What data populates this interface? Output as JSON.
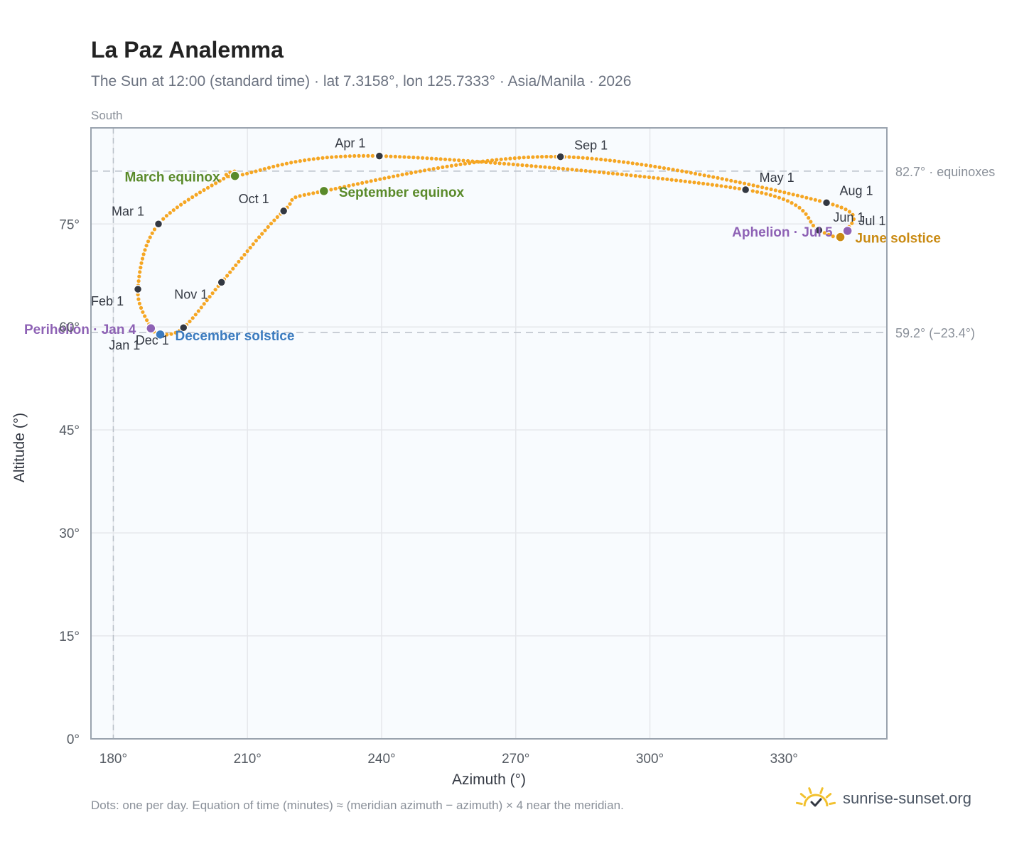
{
  "title": "La Paz Analemma",
  "subtitle": "The Sun at 12:00 (standard time) · lat 7.3158°, lon 125.7333° · Asia/Manila · 2026",
  "footer": "Dots: one per day. Equation of time (minutes) ≈ (meridian azimuth − azimuth) × 4 near the meridian.",
  "brand": "sunrise-sunset.org",
  "colors": {
    "path": "#f5a623",
    "month_marker": "#333842",
    "equinox": "#5a8a2a",
    "june_solstice": "#c98a12",
    "december_solstice": "#3b7bbf",
    "apsis": "#8e62b5",
    "grid": "#e5e7eb",
    "frame": "#9aa3ae",
    "plot_bg": "#f8fbfe",
    "reference_line": "#b9c0c9",
    "brand_sun": "#f2c12e"
  },
  "chart_data": {
    "type": "scatter",
    "xlabel": "Azimuth (°)",
    "ylabel": "Altitude (°)",
    "xlim": [
      175,
      353
    ],
    "ylim": [
      0,
      89
    ],
    "xticks": [
      180,
      210,
      240,
      270,
      300,
      330
    ],
    "xtick_labels": [
      "180°",
      "210°",
      "240°",
      "270°",
      "300°",
      "330°"
    ],
    "yticks": [
      0,
      15,
      30,
      45,
      60,
      75
    ],
    "ytick_labels": [
      "0°",
      "15°",
      "30°",
      "45°",
      "60°",
      "75°"
    ],
    "grid": true,
    "meridian": {
      "azimuth": 180,
      "label": "South"
    },
    "reference_lines": [
      {
        "altitude": 82.7,
        "label": "82.7° · equinoxes"
      },
      {
        "altitude": 59.2,
        "label": "59.2° (−23.4°)"
      }
    ],
    "path_anchors": [
      {
        "az": 188.4,
        "alt": 59.8
      },
      {
        "az": 185.5,
        "alt": 65.5
      },
      {
        "az": 190.1,
        "alt": 75.0
      },
      {
        "az": 206.5,
        "alt": 82.3
      },
      {
        "az": 207.2,
        "alt": 82.0
      },
      {
        "az": 239.5,
        "alt": 84.9
      },
      {
        "az": 321.4,
        "alt": 80.0
      },
      {
        "az": 337.8,
        "alt": 74.1
      },
      {
        "az": 342.6,
        "alt": 73.1
      },
      {
        "az": 344.0,
        "alt": 74.0
      },
      {
        "az": 344.2,
        "alt": 74.0
      },
      {
        "az": 339.5,
        "alt": 78.1
      },
      {
        "az": 280.0,
        "alt": 84.8
      },
      {
        "az": 227.1,
        "alt": 79.8
      },
      {
        "az": 218.1,
        "alt": 76.9
      },
      {
        "az": 204.2,
        "alt": 66.5
      },
      {
        "az": 195.7,
        "alt": 59.9
      },
      {
        "az": 190.5,
        "alt": 58.9
      },
      {
        "az": 188.4,
        "alt": 59.8
      }
    ],
    "month_markers": [
      {
        "label": "Jan 1",
        "az": 188.4,
        "alt": 59.8
      },
      {
        "label": "Feb 1",
        "az": 185.5,
        "alt": 65.5
      },
      {
        "label": "Mar 1",
        "az": 190.1,
        "alt": 75.0
      },
      {
        "label": "Apr 1",
        "az": 239.5,
        "alt": 84.9
      },
      {
        "label": "May 1",
        "az": 321.4,
        "alt": 80.0
      },
      {
        "label": "Jun 1",
        "az": 337.8,
        "alt": 74.1
      },
      {
        "label": "Jul 1",
        "az": 344.0,
        "alt": 74.0
      },
      {
        "label": "Aug 1",
        "az": 339.5,
        "alt": 78.1
      },
      {
        "label": "Sep 1",
        "az": 280.0,
        "alt": 84.8
      },
      {
        "label": "Oct 1",
        "az": 218.1,
        "alt": 76.9
      },
      {
        "label": "Nov 1",
        "az": 204.2,
        "alt": 66.5
      },
      {
        "label": "Dec 1",
        "az": 195.7,
        "alt": 59.9
      }
    ],
    "events": [
      {
        "label": "March equinox",
        "az": 207.2,
        "alt": 82.0,
        "kind": "equinox"
      },
      {
        "label": "September equinox",
        "az": 227.1,
        "alt": 79.8,
        "kind": "equinox"
      },
      {
        "label": "June solstice",
        "az": 342.6,
        "alt": 73.1,
        "kind": "june_solstice"
      },
      {
        "label": "December solstice",
        "az": 190.5,
        "alt": 58.9,
        "kind": "december_solstice"
      },
      {
        "label": "Perihelion · Jan 4",
        "az": 188.4,
        "alt": 59.8,
        "kind": "apsis"
      },
      {
        "label": "Aphelion · Jul 5",
        "az": 344.2,
        "alt": 74.0,
        "kind": "apsis"
      }
    ]
  }
}
